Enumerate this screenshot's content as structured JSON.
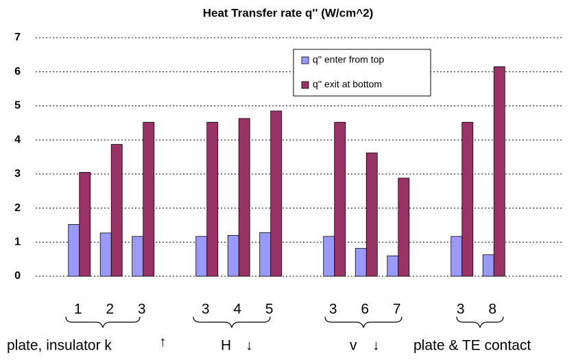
{
  "chart_data": {
    "type": "bar",
    "title": "Heat Transfer rate q'' (W/cm^2)",
    "categories": [
      null,
      "1",
      "2",
      "3",
      null,
      "3",
      "4",
      "5",
      null,
      "3",
      "6",
      "7",
      null,
      "3",
      "8",
      null
    ],
    "series": [
      {
        "name": "q'' enter from top",
        "color": "#9999ff",
        "values": [
          null,
          1.52,
          1.27,
          1.17,
          null,
          1.17,
          1.2,
          1.28,
          null,
          1.17,
          0.82,
          0.6,
          null,
          1.17,
          0.63,
          null
        ]
      },
      {
        "name": "q'' exit at bottom",
        "color": "#993366",
        "values": [
          null,
          3.05,
          3.87,
          4.52,
          null,
          4.52,
          4.63,
          4.85,
          null,
          4.52,
          3.62,
          2.88,
          null,
          4.52,
          6.15,
          null
        ]
      }
    ],
    "ylim": [
      0,
      7
    ],
    "yticks": [
      0,
      1,
      2,
      3,
      4,
      5,
      6,
      7
    ],
    "grid": true,
    "annotations": [
      "plate, insulator k",
      "↑",
      "H",
      "↓",
      "v",
      "↓",
      "plate & TE contact"
    ]
  }
}
